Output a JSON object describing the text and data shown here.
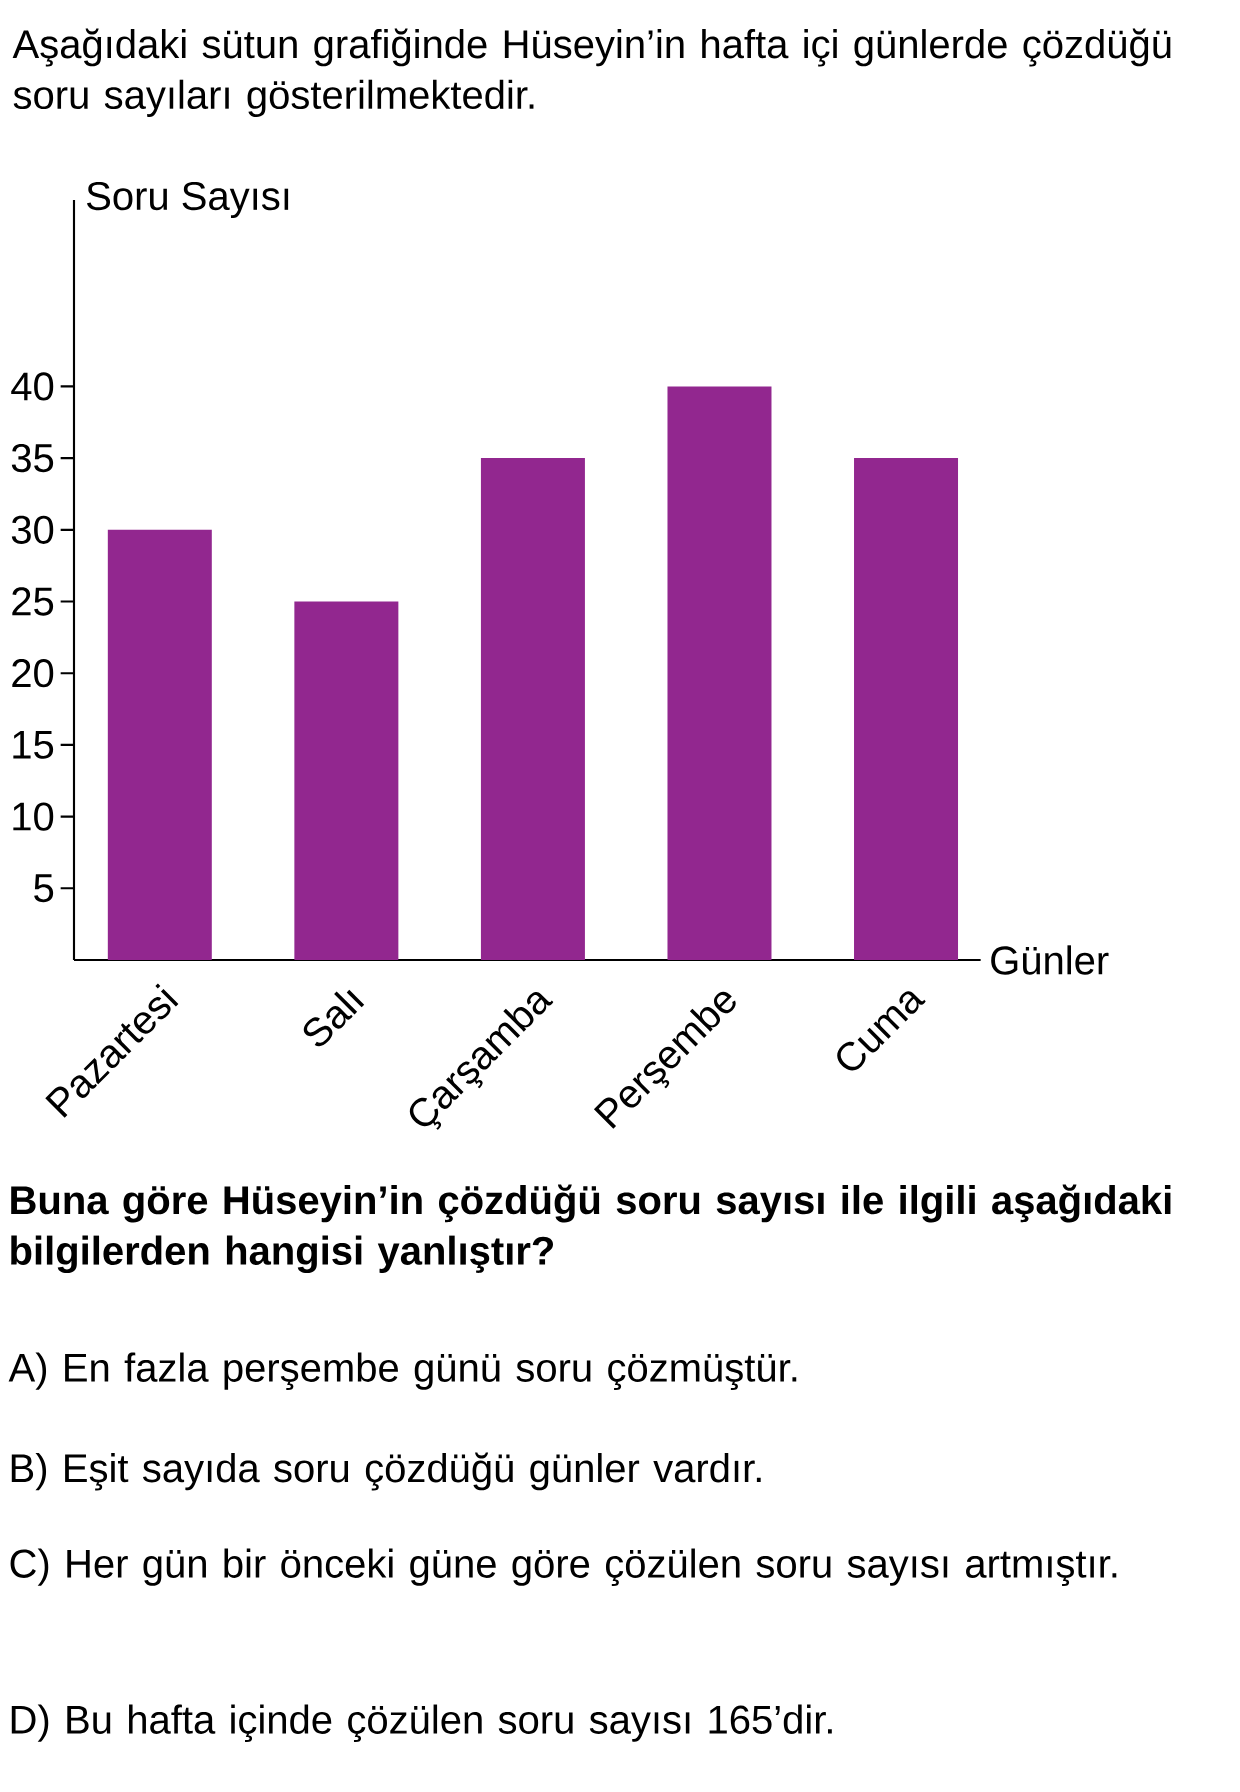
{
  "chart_data": {
    "type": "bar",
    "title": "Aşağıdaki sütun grafiğinde Hüseyin’in hafta içi günlerde çözdüğü soru sayıları gösterilmektedir.",
    "xlabel": "Günler",
    "ylabel": "Soru Sayısı",
    "categories": [
      "Pazartesi",
      "Salı",
      "Çarşamba",
      "Perşembe",
      "Cuma"
    ],
    "values": [
      30,
      25,
      35,
      40,
      35
    ],
    "color": "#92278f",
    "ylim": [
      0,
      53
    ],
    "yticks": [
      5,
      10,
      15,
      20,
      25,
      30,
      35,
      40
    ],
    "annotations": [
      "Buna göre Hüseyin’in çözdüğü soru sayısı ile ilgili aşağıdaki bilgilerden hangisi yanlıştır?",
      "A) En fazla perşembe günü soru çözmüştür.",
      "B) Eşit sayıda soru çözdüğü günler vardır.",
      "C) Her gün bir önceki güne göre çözülen soru sayısı artmıştır.",
      "D) Bu hafta içinde çözülen soru sayısı 165’dir."
    ]
  }
}
